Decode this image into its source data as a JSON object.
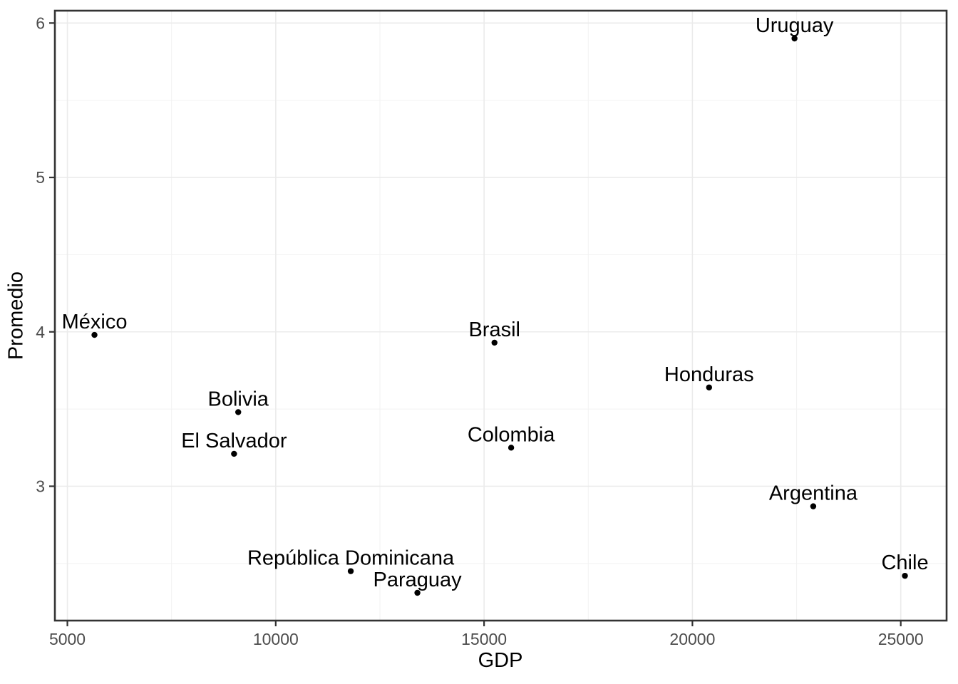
{
  "chart_data": {
    "type": "scatter",
    "title": "",
    "xlabel": "GDP",
    "ylabel": "Promedio",
    "xlim": [
      4700,
      26100
    ],
    "ylim": [
      2.13,
      6.08
    ],
    "x_ticks": [
      5000,
      10000,
      15000,
      20000,
      25000
    ],
    "y_ticks": [
      3,
      4,
      5,
      6
    ],
    "x_minor_ticks": [
      7500,
      12500,
      17500,
      22500
    ],
    "y_minor_ticks": [
      2.5,
      3.5,
      4.5,
      5.5
    ],
    "grid": "on",
    "legend": "none",
    "points": [
      {
        "label": "México",
        "x": 5650,
        "y": 3.98
      },
      {
        "label": "Bolivia",
        "x": 9100,
        "y": 3.48
      },
      {
        "label": "El Salvador",
        "x": 9000,
        "y": 3.21
      },
      {
        "label": "República Dominicana",
        "x": 11800,
        "y": 2.45
      },
      {
        "label": "Paraguay",
        "x": 13400,
        "y": 2.31
      },
      {
        "label": "Brasil",
        "x": 15250,
        "y": 3.93
      },
      {
        "label": "Colombia",
        "x": 15650,
        "y": 3.25
      },
      {
        "label": "Honduras",
        "x": 20400,
        "y": 3.64
      },
      {
        "label": "Uruguay",
        "x": 22450,
        "y": 5.9
      },
      {
        "label": "Argentina",
        "x": 22900,
        "y": 2.87
      },
      {
        "label": "Chile",
        "x": 25100,
        "y": 2.42
      }
    ],
    "colors": {
      "background": "#ffffff",
      "point": "#000000",
      "point_label": "#000000",
      "tick_label": "#4d4d4d",
      "axis_title": "#000000",
      "grid_major": "#ebebeb",
      "grid_minor": "#f2f2f2",
      "panel_border": "#333333",
      "tick_mark": "#333333"
    }
  }
}
